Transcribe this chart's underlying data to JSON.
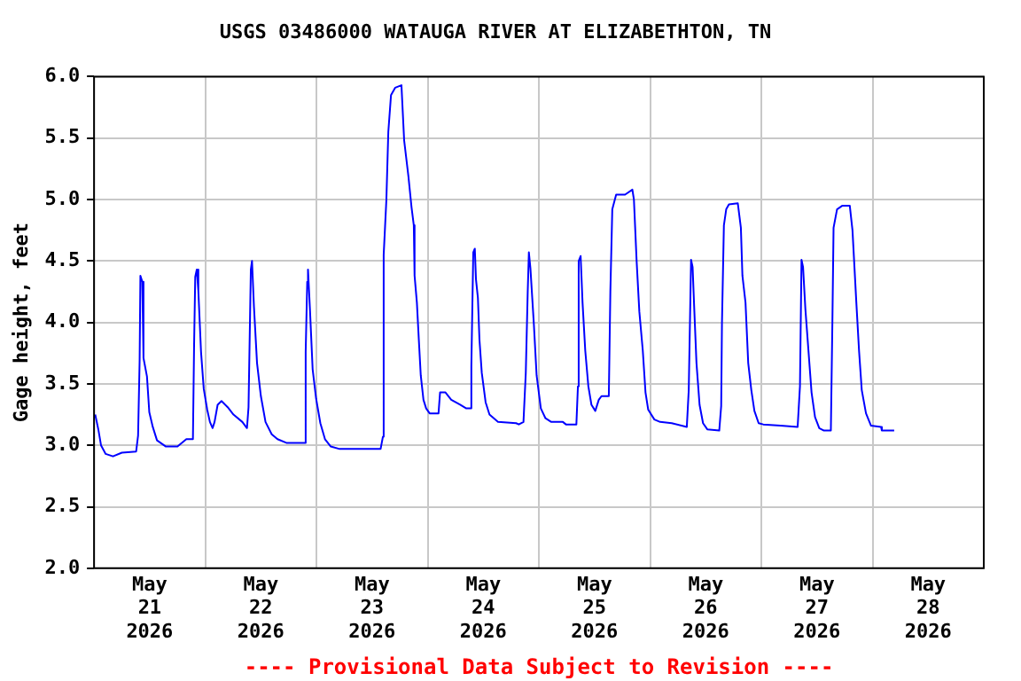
{
  "chart_data": {
    "type": "line",
    "title": "USGS 03486000 WATAUGA RIVER AT ELIZABETHTON, TN",
    "ylabel": "Gage height, feet",
    "xlim": [
      "2026-05-21T00:00",
      "2026-05-29T00:00"
    ],
    "xticks": [
      {
        "value": "2026-05-21T00:00",
        "label": null
      },
      {
        "value": "2026-05-21T12:00",
        "label": "May 21 2026"
      },
      {
        "value": "2026-05-22T00:00",
        "label": null
      },
      {
        "value": "2026-05-22T12:00",
        "label": "May 22 2026"
      },
      {
        "value": "2026-05-23T00:00",
        "label": null
      },
      {
        "value": "2026-05-23T12:00",
        "label": "May 23 2026"
      },
      {
        "value": "2026-05-24T00:00",
        "label": null
      },
      {
        "value": "2026-05-24T12:00",
        "label": "May 24 2026"
      },
      {
        "value": "2026-05-25T00:00",
        "label": null
      },
      {
        "value": "2026-05-25T12:00",
        "label": "May 25 2026"
      },
      {
        "value": "2026-05-26T00:00",
        "label": null
      },
      {
        "value": "2026-05-26T12:00",
        "label": "May 26 2026"
      },
      {
        "value": "2026-05-27T00:00",
        "label": null
      },
      {
        "value": "2026-05-27T12:00",
        "label": "May 27 2026"
      },
      {
        "value": "2026-05-28T00:00",
        "label": null
      },
      {
        "value": "2026-05-28T12:00",
        "label": "May 28 2026"
      },
      {
        "value": "2026-05-29T00:00",
        "label": null
      }
    ],
    "ylim": [
      2,
      6
    ],
    "yticks": [
      {
        "value": 2,
        "label": "2.0"
      },
      2.5,
      {
        "value": 3,
        "label": "3.0"
      },
      3.5,
      {
        "value": 4,
        "label": "4.0"
      },
      4.5,
      {
        "value": 5,
        "label": "5.0"
      },
      5.5,
      {
        "value": 6,
        "label": "6.0"
      }
    ],
    "grid": true,
    "legend": false,
    "marker": "none",
    "line_style": "solid",
    "annotations": [
      "---- Provisional Data Subject to Revision ----"
    ],
    "series": [
      {
        "color": "#0000ff",
        "x": [
          "2026-05-21T00:15",
          "2026-05-21T00:55",
          "2026-05-21T01:30",
          "2026-05-21T02:30",
          "2026-05-21T04:05",
          "2026-05-21T06:00",
          "2026-05-21T09:05",
          "2026-05-21T09:30",
          "2026-05-21T09:50",
          "2026-05-21T10:00",
          "2026-05-21T10:25",
          "2026-05-21T10:40",
          "2026-05-21T11:25",
          "2026-05-21T11:55",
          "2026-05-21T12:40",
          "2026-05-21T13:35",
          "2026-05-21T15:30",
          "2026-05-21T18:00",
          "2026-05-21T19:55",
          "2026-05-21T21:20",
          "2026-05-21T21:35",
          "2026-05-21T21:50",
          "2026-05-21T22:10",
          "2026-05-21T22:30",
          "2026-05-21T23:05",
          "2026-05-21T23:40",
          "2026-05-22T00:25",
          "2026-05-22T01:00",
          "2026-05-22T01:35",
          "2026-05-22T02:00",
          "2026-05-22T02:40",
          "2026-05-22T03:30",
          "2026-05-22T04:50",
          "2026-05-22T06:05",
          "2026-05-22T08:00",
          "2026-05-22T09:00",
          "2026-05-22T09:20",
          "2026-05-22T09:50",
          "2026-05-22T10:05",
          "2026-05-22T10:30",
          "2026-05-22T11:10",
          "2026-05-22T12:00",
          "2026-05-22T13:00",
          "2026-05-22T14:20",
          "2026-05-22T15:35",
          "2026-05-22T17:30",
          "2026-05-22T21:30",
          "2026-05-22T21:40",
          "2026-05-22T22:00",
          "2026-05-22T22:10",
          "2026-05-22T22:35",
          "2026-05-22T23:10",
          "2026-05-22T23:55",
          "2026-05-23T00:50",
          "2026-05-23T01:50",
          "2026-05-23T03:05",
          "2026-05-23T05:00",
          "2026-05-23T13:50",
          "2026-05-23T14:20",
          "2026-05-23T14:30",
          "2026-05-23T15:05",
          "2026-05-23T15:30",
          "2026-05-23T16:05",
          "2026-05-23T17:00",
          "2026-05-23T18:20",
          "2026-05-23T18:55",
          "2026-05-23T19:50",
          "2026-05-23T20:30",
          "2026-05-23T21:00",
          "2026-05-23T21:10",
          "2026-05-23T21:40",
          "2026-05-23T22:05",
          "2026-05-23T22:30",
          "2026-05-23T23:05",
          "2026-05-23T23:40",
          "2026-05-24T00:25",
          "2026-05-24T02:20",
          "2026-05-24T02:40",
          "2026-05-24T03:50",
          "2026-05-24T05:05",
          "2026-05-24T07:00",
          "2026-05-24T08:20",
          "2026-05-24T09:10",
          "2026-05-24T09:25",
          "2026-05-24T09:50",
          "2026-05-24T10:10",
          "2026-05-24T10:25",
          "2026-05-24T10:50",
          "2026-05-24T11:10",
          "2026-05-24T11:40",
          "2026-05-24T12:30",
          "2026-05-24T13:20",
          "2026-05-24T15:10",
          "2026-05-24T19:05",
          "2026-05-24T19:40",
          "2026-05-24T20:40",
          "2026-05-24T21:10",
          "2026-05-24T21:35",
          "2026-05-24T21:50",
          "2026-05-24T22:10",
          "2026-05-24T22:55",
          "2026-05-24T23:30",
          "2026-05-25T00:25",
          "2026-05-25T01:25",
          "2026-05-25T02:40",
          "2026-05-25T05:10",
          "2026-05-25T05:50",
          "2026-05-25T08:05",
          "2026-05-25T08:25",
          "2026-05-25T08:35",
          "2026-05-25T09:00",
          "2026-05-25T09:25",
          "2026-05-25T10:00",
          "2026-05-25T10:40",
          "2026-05-25T11:20",
          "2026-05-25T12:10",
          "2026-05-25T12:55",
          "2026-05-25T13:30",
          "2026-05-25T15:05",
          "2026-05-25T15:25",
          "2026-05-25T15:50",
          "2026-05-25T16:40",
          "2026-05-25T18:35",
          "2026-05-25T20:10",
          "2026-05-25T20:30",
          "2026-05-25T21:05",
          "2026-05-25T21:40",
          "2026-05-25T22:25",
          "2026-05-25T23:00",
          "2026-05-25T23:35",
          "2026-05-26T00:55",
          "2026-05-26T02:10",
          "2026-05-26T04:40",
          "2026-05-26T07:55",
          "2026-05-26T08:20",
          "2026-05-26T08:50",
          "2026-05-26T09:10",
          "2026-05-26T09:30",
          "2026-05-26T10:00",
          "2026-05-26T10:40",
          "2026-05-26T11:25",
          "2026-05-26T12:20",
          "2026-05-26T14:55",
          "2026-05-26T15:20",
          "2026-05-26T15:30",
          "2026-05-26T15:55",
          "2026-05-26T16:25",
          "2026-05-26T17:00",
          "2026-05-26T18:55",
          "2026-05-26T19:35",
          "2026-05-26T19:55",
          "2026-05-26T20:35",
          "2026-05-26T21:10",
          "2026-05-26T21:50",
          "2026-05-26T22:30",
          "2026-05-26T23:25",
          "2026-05-27T00:25",
          "2026-05-27T04:10",
          "2026-05-27T07:50",
          "2026-05-27T08:20",
          "2026-05-27T08:40",
          "2026-05-27T09:00",
          "2026-05-27T09:30",
          "2026-05-27T10:10",
          "2026-05-27T10:50",
          "2026-05-27T11:35",
          "2026-05-27T12:30",
          "2026-05-27T13:30",
          "2026-05-27T15:00",
          "2026-05-27T15:20",
          "2026-05-27T15:35",
          "2026-05-27T16:20",
          "2026-05-27T17:30",
          "2026-05-27T19:05",
          "2026-05-27T19:40",
          "2026-05-27T20:30",
          "2026-05-27T21:05",
          "2026-05-27T21:40",
          "2026-05-27T22:35",
          "2026-05-27T23:40",
          "2026-05-28T01:50",
          "2026-05-28T02:00",
          "2026-05-28T04:40"
        ],
        "values": [
          3.25,
          3.13,
          3.0,
          2.93,
          2.91,
          2.94,
          2.95,
          3.08,
          3.69,
          4.38,
          4.33,
          3.71,
          3.56,
          3.27,
          3.15,
          3.04,
          2.99,
          2.99,
          3.05,
          3.05,
          3.81,
          4.37,
          4.43,
          4.26,
          3.76,
          3.46,
          3.29,
          3.19,
          3.14,
          3.19,
          3.33,
          3.36,
          3.31,
          3.25,
          3.19,
          3.14,
          3.31,
          4.43,
          4.5,
          4.13,
          3.67,
          3.4,
          3.19,
          3.09,
          3.05,
          3.02,
          3.02,
          3.76,
          4.33,
          4.43,
          4.11,
          3.62,
          3.38,
          3.18,
          3.05,
          2.99,
          2.97,
          2.97,
          3.07,
          4.55,
          5.0,
          5.55,
          5.85,
          5.91,
          5.93,
          5.48,
          5.19,
          4.94,
          4.79,
          4.38,
          4.16,
          3.86,
          3.57,
          3.37,
          3.3,
          3.26,
          3.26,
          3.43,
          3.43,
          3.37,
          3.33,
          3.3,
          3.3,
          3.64,
          4.57,
          4.6,
          4.35,
          4.2,
          3.86,
          3.59,
          3.35,
          3.25,
          3.19,
          3.18,
          3.17,
          3.19,
          3.59,
          4.25,
          4.57,
          4.44,
          3.98,
          3.57,
          3.3,
          3.22,
          3.19,
          3.19,
          3.17,
          3.17,
          3.48,
          4.5,
          4.54,
          4.16,
          3.77,
          3.48,
          3.33,
          3.28,
          3.37,
          3.4,
          3.4,
          4.25,
          4.92,
          5.04,
          5.04,
          5.08,
          5.0,
          4.5,
          4.09,
          3.77,
          3.43,
          3.29,
          3.21,
          3.19,
          3.18,
          3.15,
          3.45,
          4.51,
          4.45,
          4.13,
          3.67,
          3.33,
          3.18,
          3.13,
          3.12,
          3.32,
          3.99,
          4.79,
          4.92,
          4.96,
          4.97,
          4.77,
          4.38,
          4.16,
          3.67,
          3.45,
          3.28,
          3.18,
          3.17,
          3.16,
          3.15,
          3.48,
          4.51,
          4.45,
          4.11,
          3.77,
          3.43,
          3.23,
          3.14,
          3.12,
          3.12,
          4.01,
          4.77,
          4.92,
          4.95,
          4.95,
          4.75,
          4.16,
          3.77,
          3.45,
          3.26,
          3.16,
          3.15,
          3.12,
          3.12
        ]
      }
    ]
  }
}
